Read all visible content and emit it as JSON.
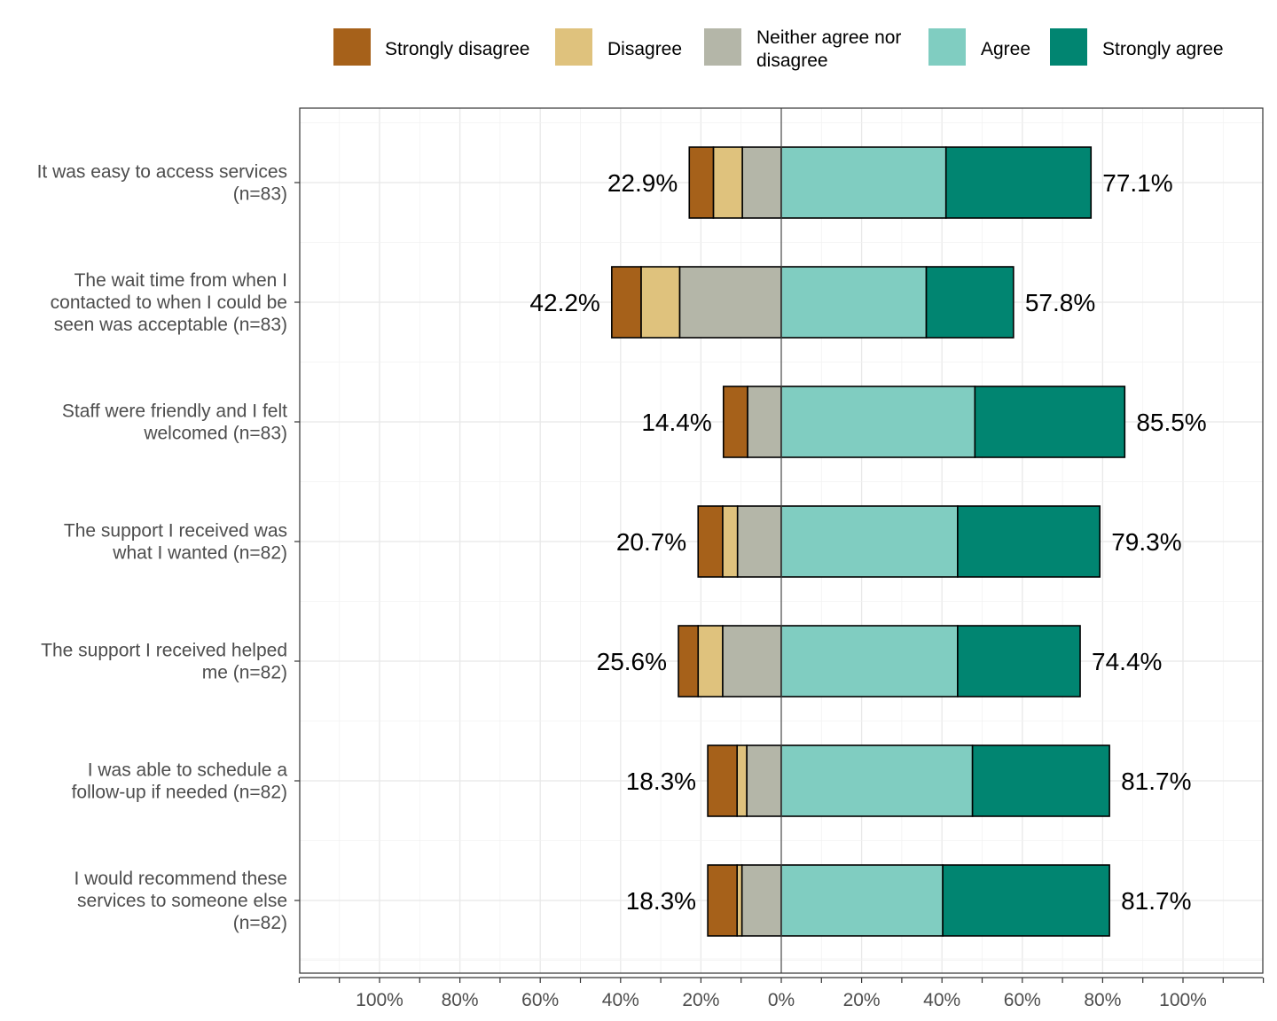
{
  "chart_data": {
    "type": "bar",
    "orientation": "horizontal-diverging",
    "title": "",
    "xlabel": "",
    "ylabel": "",
    "xlim": [
      -120,
      120
    ],
    "grid": true,
    "legend_position": "top",
    "x_tick_values": [
      -100,
      -80,
      -60,
      -40,
      -20,
      0,
      20,
      40,
      60,
      80,
      100
    ],
    "x_tick_labels": [
      "100%",
      "80%",
      "60%",
      "40%",
      "20%",
      "0%",
      "20%",
      "40%",
      "60%",
      "80%",
      "100%"
    ],
    "categories": [
      "It was easy to access services (n=83)",
      "The wait time from when I contacted to when I could be seen was acceptable (n=83)",
      "Staff were friendly and I felt welcomed (n=83)",
      "The support I received was what I wanted (n=82)",
      "The support I received helped me (n=82)",
      "I was able to schedule a follow-up if needed  (n=82)",
      "I would recommend these services to someone else (n=82)"
    ],
    "category_lines": [
      [
        "It was easy to access services",
        "(n=83)"
      ],
      [
        "The wait time from when I",
        "contacted to when I could be",
        "seen was acceptable (n=83)"
      ],
      [
        "Staff were friendly and I felt",
        "welcomed (n=83)"
      ],
      [
        "The support I received was",
        "what I wanted (n=82)"
      ],
      [
        "The support I received helped",
        "me (n=82)"
      ],
      [
        "I was able to schedule a",
        "follow-up if needed  (n=82)"
      ],
      [
        "I would recommend these",
        "services to someone else",
        "(n=82)"
      ]
    ],
    "series": [
      {
        "name": "Strongly disagree",
        "side": "negative",
        "color": "#a6611a",
        "values": [
          6.0,
          7.3,
          6.0,
          6.1,
          4.9,
          7.3,
          7.3
        ]
      },
      {
        "name": "Disagree",
        "side": "negative",
        "color": "#dfc27d",
        "values": [
          7.2,
          9.6,
          0.0,
          3.7,
          6.1,
          2.4,
          1.2
        ]
      },
      {
        "name": "Neither agree nor disagree",
        "side": "negative",
        "color": "#b4b6a8",
        "values": [
          9.7,
          25.3,
          8.4,
          10.9,
          14.6,
          8.6,
          9.8
        ]
      },
      {
        "name": "Agree",
        "side": "positive",
        "color": "#80cdc1",
        "values": [
          41.0,
          36.1,
          48.2,
          43.9,
          43.9,
          47.6,
          40.2
        ]
      },
      {
        "name": "Strongly agree",
        "side": "positive",
        "color": "#018571",
        "values": [
          36.1,
          21.7,
          37.3,
          35.4,
          30.5,
          34.1,
          41.5
        ]
      }
    ],
    "legend": [
      {
        "label": "Strongly disagree",
        "color": "#a6611a"
      },
      {
        "label": "Disagree",
        "color": "#dfc27d"
      },
      {
        "label": "Neither agree nor disagree",
        "lines": [
          "Neither agree nor",
          "disagree"
        ],
        "color": "#b4b6a8"
      },
      {
        "label": "Agree",
        "color": "#80cdc1"
      },
      {
        "label": "Strongly agree",
        "color": "#018571"
      }
    ],
    "negative_totals": [
      "22.9%",
      "42.2%",
      "14.4%",
      "20.7%",
      "25.6%",
      "18.3%",
      "18.3%"
    ],
    "positive_totals": [
      "77.1%",
      "57.8%",
      "85.5%",
      "79.3%",
      "74.4%",
      "81.7%",
      "81.7%"
    ]
  }
}
